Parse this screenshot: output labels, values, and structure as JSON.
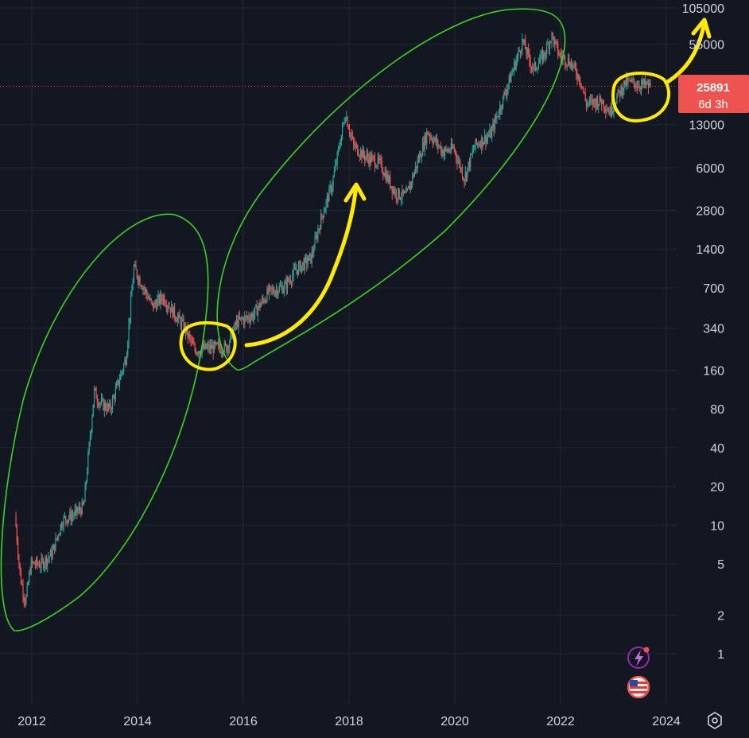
{
  "chart_data": {
    "type": "candlestick",
    "scale": "log",
    "grid": true,
    "colors": {
      "background": "#131722",
      "up": "#26a69a",
      "down": "#ef5350",
      "grid": "#232735",
      "text": "#d1d4dc",
      "price_line": "#ef5350",
      "annotation_green": "#3ad31f",
      "annotation_yellow": "#ffea00"
    },
    "y_ticks": [
      "105000",
      "55000",
      "13000",
      "6000",
      "2800",
      "1400",
      "700",
      "340",
      "160",
      "80",
      "40",
      "20",
      "10",
      "5",
      "2",
      "1"
    ],
    "x_ticks": [
      "2012",
      "2014",
      "2016",
      "2018",
      "2020",
      "2022",
      "2024"
    ],
    "ylim": [
      0.5,
      105000
    ],
    "xlim": [
      2011.6,
      2024.2
    ],
    "current_price": {
      "value": 25891,
      "label": "25891",
      "countdown": "6d 3h"
    },
    "series_path": [
      [
        2011.7,
        12
      ],
      [
        2011.8,
        4
      ],
      [
        2011.9,
        2.5
      ],
      [
        2012.0,
        5
      ],
      [
        2012.2,
        5
      ],
      [
        2012.4,
        6
      ],
      [
        2012.6,
        11
      ],
      [
        2012.8,
        12
      ],
      [
        2013.0,
        14
      ],
      [
        2013.2,
        110
      ],
      [
        2013.3,
        90
      ],
      [
        2013.5,
        80
      ],
      [
        2013.8,
        200
      ],
      [
        2013.95,
        1000
      ],
      [
        2014.1,
        750
      ],
      [
        2014.3,
        500
      ],
      [
        2014.5,
        600
      ],
      [
        2014.7,
        450
      ],
      [
        2014.9,
        350
      ],
      [
        2015.1,
        230
      ],
      [
        2015.4,
        240
      ],
      [
        2015.7,
        240
      ],
      [
        2015.9,
        380
      ],
      [
        2016.2,
        430
      ],
      [
        2016.5,
        650
      ],
      [
        2016.8,
        720
      ],
      [
        2017.0,
        950
      ],
      [
        2017.3,
        1200
      ],
      [
        2017.5,
        2500
      ],
      [
        2017.7,
        4500
      ],
      [
        2017.95,
        16000
      ],
      [
        2018.1,
        9000
      ],
      [
        2018.3,
        7500
      ],
      [
        2018.6,
        6500
      ],
      [
        2018.9,
        3800
      ],
      [
        2019.1,
        3600
      ],
      [
        2019.4,
        8500
      ],
      [
        2019.5,
        11500
      ],
      [
        2019.8,
        8000
      ],
      [
        2020.0,
        8500
      ],
      [
        2020.2,
        5000
      ],
      [
        2020.4,
        9000
      ],
      [
        2020.7,
        11000
      ],
      [
        2020.9,
        19000
      ],
      [
        2021.1,
        33000
      ],
      [
        2021.3,
        58000
      ],
      [
        2021.5,
        35000
      ],
      [
        2021.7,
        45000
      ],
      [
        2021.85,
        64000
      ],
      [
        2022.0,
        45000
      ],
      [
        2022.2,
        40000
      ],
      [
        2022.4,
        29000
      ],
      [
        2022.5,
        19000
      ],
      [
        2022.8,
        20000
      ],
      [
        2022.95,
        16500
      ],
      [
        2023.1,
        22000
      ],
      [
        2023.25,
        28000
      ],
      [
        2023.45,
        27000
      ],
      [
        2023.6,
        26500
      ],
      [
        2023.7,
        25891
      ]
    ]
  },
  "annotations": {
    "ellipses": [
      "cycle-2012-2014",
      "cycle-2015-2021"
    ],
    "circles": [
      "accumulation-2015",
      "accumulation-2023"
    ],
    "arrows": [
      "up-arrow-2016-2018",
      "up-arrow-2023-2024"
    ]
  },
  "icons": {
    "lightning": "lightning-icon",
    "flag": "us-flag-icon",
    "settings": "settings-hexagon-icon"
  }
}
